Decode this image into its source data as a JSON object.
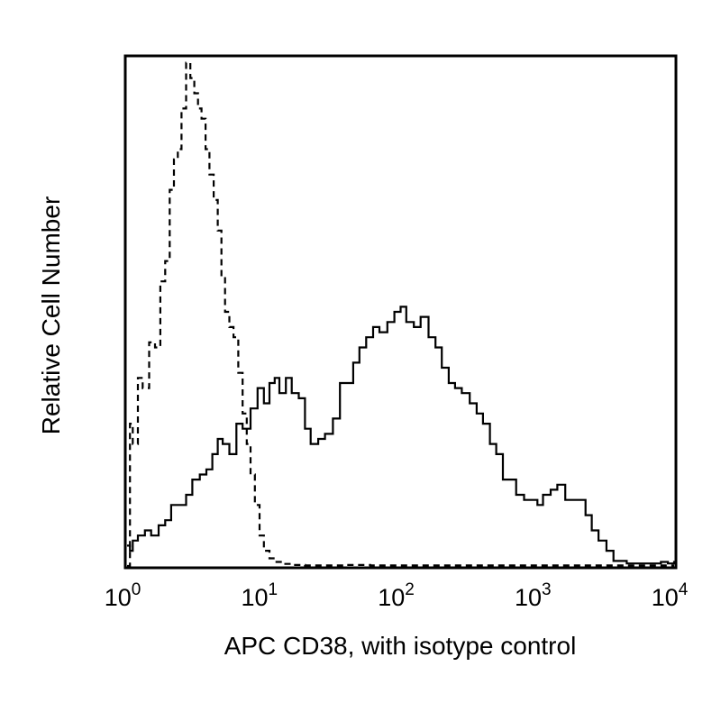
{
  "chart_data": {
    "type": "line",
    "title": "",
    "xlabel": "APC CD38, with isotype control",
    "ylabel": "Relative Cell Number",
    "x_scale": "log",
    "xlim": [
      1,
      10000
    ],
    "ylim": [
      0,
      100
    ],
    "grid": false,
    "x_ticks": [
      {
        "value": 1,
        "base": "10",
        "exp": "0"
      },
      {
        "value": 10,
        "base": "10",
        "exp": "1"
      },
      {
        "value": 100,
        "base": "10",
        "exp": "2"
      },
      {
        "value": 1000,
        "base": "10",
        "exp": "3"
      },
      {
        "value": 10000,
        "base": "10",
        "exp": "4"
      }
    ],
    "series": [
      {
        "style": "solid",
        "color": "#000000",
        "x": [
          1.0,
          1.05,
          1.1,
          1.2,
          1.35,
          1.5,
          1.7,
          1.9,
          2.1,
          2.4,
          2.7,
          3.0,
          3.4,
          3.8,
          4.2,
          4.6,
          5.0,
          5.6,
          6.3,
          7.0,
          8.0,
          9.0,
          10.0,
          11.0,
          12.0,
          13.0,
          14.5,
          16.0,
          18.0,
          20.0,
          22.0,
          25.0,
          28.0,
          32.0,
          36.0,
          40.0,
          45.0,
          50.0,
          56.0,
          63.0,
          70.0,
          80.0,
          90.0,
          100.0,
          110.0,
          125.0,
          140.0,
          160.0,
          180.0,
          200.0,
          225.0,
          250.0,
          280.0,
          320.0,
          360.0,
          400.0,
          450.0,
          500.0,
          560.0,
          630.0,
          700.0,
          800.0,
          900.0,
          1000.0,
          1100.0,
          1250.0,
          1400.0,
          1600.0,
          1800.0,
          2000.0,
          2250.0,
          2500.0,
          2800.0,
          3200.0,
          3600.0,
          4000.0,
          4500.0,
          5000.0,
          6000.0,
          7000.0,
          8000.0,
          9000.0,
          10000.0
        ],
        "y": [
          4,
          3,
          5,
          6,
          7,
          6,
          8,
          9,
          12,
          12,
          14,
          17,
          18,
          19,
          22,
          25,
          24,
          22,
          28,
          27,
          31,
          35,
          32,
          36,
          37,
          34,
          37,
          34,
          33,
          27,
          24,
          25,
          26,
          29,
          36,
          36,
          40,
          43,
          45,
          47,
          46,
          48,
          50,
          51,
          48,
          47,
          49,
          45,
          43,
          39,
          36,
          35,
          34,
          32,
          30,
          28,
          24,
          22,
          17,
          17,
          14,
          13,
          13,
          12,
          14,
          15,
          16,
          13,
          13,
          13,
          10,
          7,
          5,
          3,
          1,
          1,
          0.5,
          0.5,
          0.5,
          0.5,
          0.8,
          0.5,
          1
        ]
      },
      {
        "style": "dashed",
        "color": "#000000",
        "x": [
          1.0,
          1.05,
          1.1,
          1.2,
          1.3,
          1.45,
          1.6,
          1.75,
          1.9,
          2.05,
          2.2,
          2.35,
          2.5,
          2.7,
          2.9,
          3.1,
          3.3,
          3.5,
          3.75,
          4.0,
          4.3,
          4.6,
          4.9,
          5.2,
          5.6,
          6.0,
          6.5,
          7.0,
          7.5,
          8.0,
          8.6,
          9.3,
          10.0,
          11.0,
          12.0,
          14.0,
          16.0,
          20.0,
          25.0,
          30.0,
          40.0,
          60.0,
          100.0,
          200.0,
          500.0,
          1000.0,
          3000.0,
          10000.0
        ],
        "y": [
          0,
          28,
          24,
          37,
          35,
          44,
          43,
          56,
          60,
          74,
          80,
          82,
          90,
          99,
          96,
          93,
          90,
          88,
          82,
          77,
          72,
          66,
          57,
          50,
          47,
          45,
          38,
          30,
          24,
          18,
          12,
          6,
          3,
          1.5,
          0.8,
          0.4,
          0.2,
          0.1,
          0.1,
          0.1,
          0.2,
          0.1,
          0.1,
          0.1,
          0.1,
          0.1,
          0.1,
          0.1
        ]
      }
    ]
  }
}
